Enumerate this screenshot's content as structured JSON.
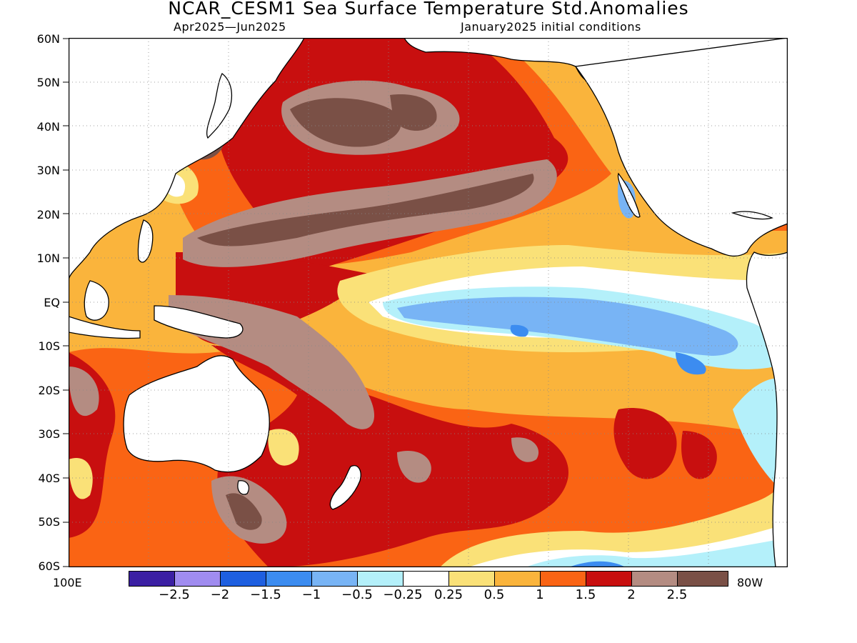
{
  "title": "NCAR_CESM1 Sea Surface Temperature Std.Anomalies",
  "subtitle_left": "Apr2025—Jun2025",
  "subtitle_right": "January2025 initial conditions",
  "lat_labels": [
    "60N",
    "50N",
    "40N",
    "30N",
    "20N",
    "10N",
    "EQ",
    "10S",
    "20S",
    "30S",
    "40S",
    "50S",
    "60S"
  ],
  "lon_labels": {
    "left": "100E",
    "right": "80W"
  },
  "colorbar": {
    "labels": [
      "−2.5",
      "−2",
      "−1.5",
      "−1",
      "−0.5",
      "−0.25",
      "0.25",
      "0.5",
      "1",
      "1.5",
      "2",
      "2.5"
    ],
    "colors": [
      "#3b1fa3",
      "#a08cf0",
      "#1e5fe0",
      "#3c8cf0",
      "#78b4f5",
      "#b4f0fa",
      "#ffffff",
      "#fae178",
      "#fab43c",
      "#fa6414",
      "#c80f0f",
      "#b48c82",
      "#7a5046"
    ]
  }
}
